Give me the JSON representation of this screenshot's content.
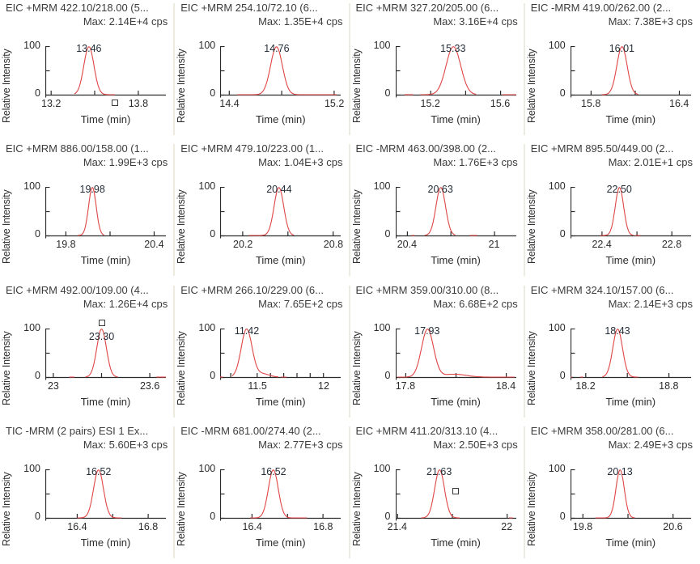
{
  "chart_data": {
    "type": "line",
    "layout": "4x4-grid",
    "x_axis_label": "Time (min)",
    "y_axis_label": "Relative Intensity",
    "y_tick_labels": [
      "100",
      "0"
    ],
    "ylim": [
      0,
      100
    ],
    "units": "cps",
    "line_color": "#e04545",
    "peak_label_color": "#232d38",
    "axis_color": "#2b2b2b",
    "panels": [
      {
        "title": "EIC +MRM 422.10/218.00 (5...",
        "max_label": "Max: 2.14E+4 cps",
        "peak_time": "13.46",
        "x_domain": [
          13.16,
          13.99
        ],
        "xticks": [
          {
            "t": 13.2,
            "label": "13.2"
          },
          {
            "t": 13.8,
            "label": "13.8"
          }
        ],
        "minor_xticks": [
          13.5
        ],
        "trace": {
          "peak": 13.46,
          "sigma": 0.035,
          "segments": [
            [
              13.36,
              13.64
            ]
          ]
        },
        "marker": {
          "t": 13.64,
          "pos": "below-axis"
        }
      },
      {
        "title": "EIC +MRM 254.10/72.10 (6...",
        "max_label": "Max: 1.35E+4 cps",
        "peak_time": "14.76",
        "x_domain": [
          14.33,
          15.25
        ],
        "xticks": [
          {
            "t": 14.4,
            "label": "14.4"
          },
          {
            "t": 15.2,
            "label": "15.2"
          }
        ],
        "minor_xticks": [
          14.8
        ],
        "trace": {
          "peak": 14.76,
          "sigma": 0.045,
          "segments": [
            [
              14.46,
              15.22
            ]
          ]
        }
      },
      {
        "title": "EIC +MRM 327.20/205.00 (6...",
        "max_label": "Max: 3.16E+4 cps",
        "peak_time": "15.33",
        "x_domain": [
          15.0,
          15.69
        ],
        "xticks": [
          {
            "t": 15.2,
            "label": "15.2"
          },
          {
            "t": 15.6,
            "label": "15.6"
          }
        ],
        "minor_xticks": [
          15.4
        ],
        "trace": {
          "peak": 15.33,
          "sigma": 0.042,
          "segments": [
            [
              15.05,
              15.1
            ],
            [
              15.14,
              15.46
            ],
            [
              15.61,
              15.69
            ]
          ]
        }
      },
      {
        "title": "EIC -MRM 419.00/262.00 (2...",
        "max_label": "Max: 7.38E+3 cps",
        "peak_time": "16.01",
        "x_domain": [
          15.66,
          16.48
        ],
        "xticks": [
          {
            "t": 15.8,
            "label": "15.8"
          },
          {
            "t": 16.4,
            "label": "16.4"
          }
        ],
        "minor_xticks": [
          16.1
        ],
        "trace": {
          "peak": 16.01,
          "sigma": 0.035,
          "segments": [
            [
              15.87,
              16.12
            ]
          ]
        }
      },
      {
        "title": "EIC +MRM 886.00/158.00 (1...",
        "max_label": "Max: 1.99E+3 cps",
        "peak_time": "19.98",
        "x_domain": [
          19.66,
          20.48
        ],
        "xticks": [
          {
            "t": 19.8,
            "label": "19.8"
          },
          {
            "t": 20.4,
            "label": "20.4"
          }
        ],
        "minor_xticks": [
          20.1
        ],
        "trace": {
          "peak": 19.98,
          "sigma": 0.026,
          "segments": [
            [
              19.88,
              20.06
            ]
          ]
        }
      },
      {
        "title": "EIC +MRM 479.10/223.00 (1...",
        "max_label": "Max: 1.04E+3 cps",
        "peak_time": "20.44",
        "x_domain": [
          20.05,
          20.85
        ],
        "xticks": [
          {
            "t": 20.2,
            "label": "20.2"
          },
          {
            "t": 20.8,
            "label": "20.8"
          }
        ],
        "minor_xticks": [
          20.5
        ],
        "trace": {
          "peak": 20.44,
          "sigma": 0.032,
          "segments": [
            [
              20.24,
              20.54
            ]
          ]
        }
      },
      {
        "title": "EIC -MRM 463.00/398.00 (2...",
        "max_label": "Max: 1.76E+3 cps",
        "peak_time": "20.63",
        "x_domain": [
          20.32,
          21.15
        ],
        "xticks": [
          {
            "t": 20.4,
            "label": "20.4"
          },
          {
            "t": 21.0,
            "label": "21"
          }
        ],
        "minor_xticks": [
          20.7
        ],
        "trace": {
          "peak": 20.63,
          "sigma": 0.033,
          "segments": [
            [
              20.43,
              20.45
            ],
            [
              20.52,
              20.73
            ],
            [
              20.83,
              20.88
            ]
          ]
        }
      },
      {
        "title": "EIC +MRM 895.50/449.00 (2...",
        "max_label": "Max: 2.01E+1 cps",
        "peak_time": "22.50",
        "x_domain": [
          22.22,
          22.91
        ],
        "xticks": [
          {
            "t": 22.4,
            "label": "22.4"
          },
          {
            "t": 22.8,
            "label": "22.8"
          }
        ],
        "minor_xticks": [
          22.6
        ],
        "trace": {
          "peak": 22.5,
          "sigma": 0.024,
          "segments": [
            [
              22.39,
              22.58
            ],
            [
              22.59,
              22.62
            ]
          ]
        }
      },
      {
        "title": "EIC +MRM 492.00/109.00 (4...",
        "max_label": "Max: 1.26E+4 cps",
        "peak_time": "23.30",
        "x_domain": [
          22.95,
          23.7
        ],
        "xticks": [
          {
            "t": 23.0,
            "label": "23"
          },
          {
            "t": 23.6,
            "label": "23.6"
          }
        ],
        "minor_xticks": [
          23.3
        ],
        "trace": {
          "peak": 23.3,
          "sigma": 0.03,
          "segments": [
            [
              23.1,
              23.13
            ],
            [
              23.2,
              23.4
            ],
            [
              23.64,
              23.7
            ]
          ]
        },
        "marker": {
          "t": 23.3,
          "pos": "above-peak"
        }
      },
      {
        "title": "EIC +MRM 266.10/229.00 (6...",
        "max_label": "Max: 7.65E+2 cps",
        "peak_time": "11.42",
        "x_domain": [
          11.22,
          12.13
        ],
        "xticks": [
          {
            "t": 11.5,
            "label": "11.5"
          },
          {
            "t": 12.0,
            "label": "12"
          }
        ],
        "minor_xticks": [
          11.3,
          11.6,
          11.7,
          11.8,
          11.9
        ],
        "trace": {
          "peak": 11.42,
          "sigma": 0.041,
          "segments": [
            [
              11.22,
              11.24
            ],
            [
              11.31,
              11.66
            ],
            [
              11.68,
              11.72
            ]
          ],
          "tail": {
            "t": 11.54,
            "h": 7,
            "sigma": 0.05
          }
        }
      },
      {
        "title": "EIC +MRM 359.00/310.00 (8...",
        "max_label": "Max: 6.68E+2 cps",
        "peak_time": "17.93",
        "x_domain": [
          17.74,
          18.46
        ],
        "xticks": [
          {
            "t": 17.8,
            "label": "17.8"
          },
          {
            "t": 18.4,
            "label": "18.4"
          }
        ],
        "minor_xticks": [
          18.1
        ],
        "trace": {
          "peak": 17.93,
          "sigma": 0.036,
          "segments": [
            [
              17.75,
              18.45
            ]
          ],
          "tail": {
            "t": 18.09,
            "h": 6,
            "sigma": 0.07
          }
        }
      },
      {
        "title": "EIC +MRM 324.10/157.00 (6...",
        "max_label": "Max: 2.14E+3 cps",
        "peak_time": "18.43",
        "x_domain": [
          18.09,
          18.96
        ],
        "xticks": [
          {
            "t": 18.2,
            "label": "18.2"
          },
          {
            "t": 18.8,
            "label": "18.8"
          }
        ],
        "minor_xticks": [
          18.5
        ],
        "trace": {
          "peak": 18.43,
          "sigma": 0.035,
          "segments": [
            [
              18.09,
              18.1
            ],
            [
              18.16,
              18.18
            ],
            [
              18.32,
              18.58
            ]
          ]
        }
      },
      {
        "title": "TIC -MRM (2 pairs) ESI 1 Ex...",
        "max_label": "Max: 5.60E+3 cps",
        "peak_time": "16.52",
        "x_domain": [
          16.22,
          16.9
        ],
        "xticks": [
          {
            "t": 16.4,
            "label": "16.4"
          },
          {
            "t": 16.8,
            "label": "16.8"
          }
        ],
        "minor_xticks": [
          16.6
        ],
        "trace": {
          "peak": 16.52,
          "sigma": 0.028,
          "segments": [
            [
              16.4,
              16.65
            ]
          ]
        }
      },
      {
        "title": "EIC -MRM 681.00/274.40 (2...",
        "max_label": "Max: 2.77E+3 cps",
        "peak_time": "16.52",
        "x_domain": [
          16.22,
          16.9
        ],
        "xticks": [
          {
            "t": 16.4,
            "label": "16.4"
          },
          {
            "t": 16.8,
            "label": "16.8"
          }
        ],
        "minor_xticks": [
          16.6
        ],
        "trace": {
          "peak": 16.52,
          "sigma": 0.028,
          "segments": [
            [
              16.39,
              16.71
            ]
          ]
        }
      },
      {
        "title": "EIC +MRM 411.20/313.10 (4...",
        "max_label": "Max: 2.50E+3 cps",
        "peak_time": "21.63",
        "x_domain": [
          21.39,
          22.05
        ],
        "xticks": [
          {
            "t": 21.4,
            "label": "21.4"
          },
          {
            "t": 22.0,
            "label": "22"
          }
        ],
        "minor_xticks": [
          21.7
        ],
        "trace": {
          "peak": 21.63,
          "sigma": 0.027,
          "segments": [
            [
              21.53,
              21.74
            ],
            [
              22.01,
              22.03
            ]
          ]
        },
        "marker": {
          "t": 21.72,
          "y_pct": 55,
          "pos": "in-plot"
        }
      },
      {
        "title": "EIC +MRM 358.00/281.00 (6...",
        "max_label": "Max: 2.49E+3 cps",
        "peak_time": "20.13",
        "x_domain": [
          19.69,
          20.76
        ],
        "xticks": [
          {
            "t": 19.8,
            "label": "19.8"
          },
          {
            "t": 20.6,
            "label": "20.6"
          }
        ],
        "minor_xticks": [
          20.2
        ],
        "trace": {
          "peak": 20.13,
          "sigma": 0.037,
          "segments": [
            [
              19.91,
              20.26
            ]
          ]
        }
      }
    ]
  }
}
